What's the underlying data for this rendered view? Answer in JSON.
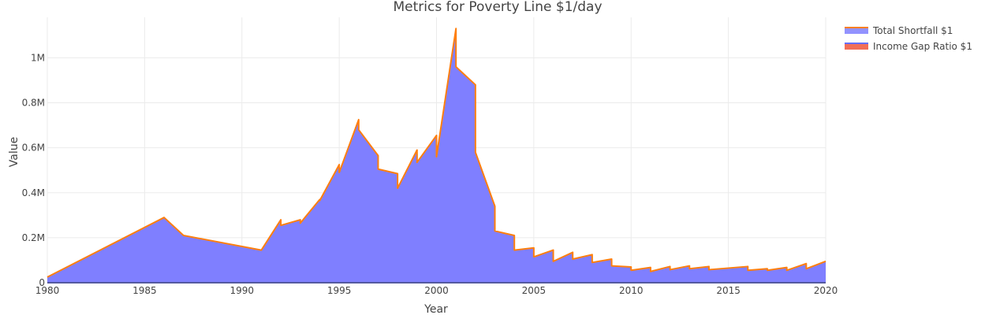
{
  "chart_data": {
    "type": "area",
    "title": "Metrics for Poverty Line $1/day",
    "xlabel": "Year",
    "ylabel": "Value",
    "xlim": [
      1980,
      2020
    ],
    "ylim": [
      0,
      1180000
    ],
    "x_ticks": [
      1980,
      1985,
      1990,
      1995,
      2000,
      2005,
      2010,
      2015,
      2020
    ],
    "y_ticks": [
      0,
      200000,
      400000,
      600000,
      800000,
      1000000
    ],
    "y_tick_labels": [
      "0",
      "0.2M",
      "0.4M",
      "0.6M",
      "0.8M",
      "1M"
    ],
    "grid": true,
    "legend_position": "top-right",
    "series": [
      {
        "name": "Total Shortfall $1",
        "color": "#ff7f0e",
        "fill_color": "#7f7fff",
        "x": [
          1980,
          1986,
          1987,
          1991,
          1992,
          1992,
          1993,
          1993,
          1994,
          1994,
          1995,
          1995,
          1996,
          1996,
          1997,
          1997,
          1998,
          1998,
          1999,
          1999,
          2000,
          2000,
          2001,
          2001,
          2002,
          2002,
          2003,
          2003,
          2004,
          2004,
          2005,
          2005,
          2006,
          2006,
          2007,
          2007,
          2008,
          2008,
          2009,
          2009,
          2010,
          2010,
          2011,
          2011,
          2012,
          2012,
          2013,
          2013,
          2014,
          2014,
          2015,
          2015,
          2016,
          2016,
          2017,
          2017,
          2018,
          2018,
          2019,
          2019,
          2020
        ],
        "values": [
          25000,
          290000,
          210000,
          145000,
          280000,
          255000,
          280000,
          265000,
          370000,
          365000,
          525000,
          490000,
          725000,
          680000,
          565000,
          505000,
          485000,
          420000,
          590000,
          535000,
          655000,
          560000,
          1130000,
          960000,
          880000,
          580000,
          340000,
          230000,
          210000,
          145000,
          155000,
          115000,
          145000,
          95000,
          135000,
          105000,
          125000,
          90000,
          105000,
          75000,
          70000,
          55000,
          68000,
          50000,
          72000,
          58000,
          75000,
          62000,
          72000,
          58000,
          65000,
          65000,
          72000,
          55000,
          62000,
          55000,
          68000,
          55000,
          85000,
          62000,
          95000
        ]
      },
      {
        "name": "Income Gap Ratio $1",
        "color": "#636efa",
        "fill_color": "#ef553b",
        "x": [
          1980,
          1986,
          1987,
          1991,
          1992,
          1992,
          1993,
          1993,
          1994,
          1994,
          1995,
          1995,
          1996,
          1996,
          1997,
          1997,
          1998,
          1998,
          1999,
          1999,
          2000,
          2000,
          2001,
          2001,
          2002,
          2002,
          2003,
          2003,
          2004,
          2004,
          2005,
          2005,
          2006,
          2006,
          2007,
          2007,
          2008,
          2008,
          2009,
          2009,
          2010,
          2010,
          2011,
          2011,
          2012,
          2012,
          2013,
          2013,
          2014,
          2014,
          2015,
          2015,
          2016,
          2016,
          2017,
          2017,
          2018,
          2018,
          2019,
          2019,
          2020
        ],
        "values": [
          30,
          30,
          30,
          30,
          30,
          30,
          30,
          30,
          30,
          30,
          30,
          30,
          30,
          30,
          30,
          30,
          30,
          30,
          30,
          30,
          30,
          30,
          30,
          30,
          30,
          30,
          30,
          30,
          30,
          30,
          30,
          30,
          30,
          30,
          30,
          30,
          30,
          30,
          30,
          30,
          30,
          30,
          30,
          30,
          30,
          30,
          30,
          30,
          30,
          30,
          30,
          30,
          30,
          30,
          30,
          30,
          30,
          30,
          30,
          30,
          30
        ]
      }
    ]
  }
}
